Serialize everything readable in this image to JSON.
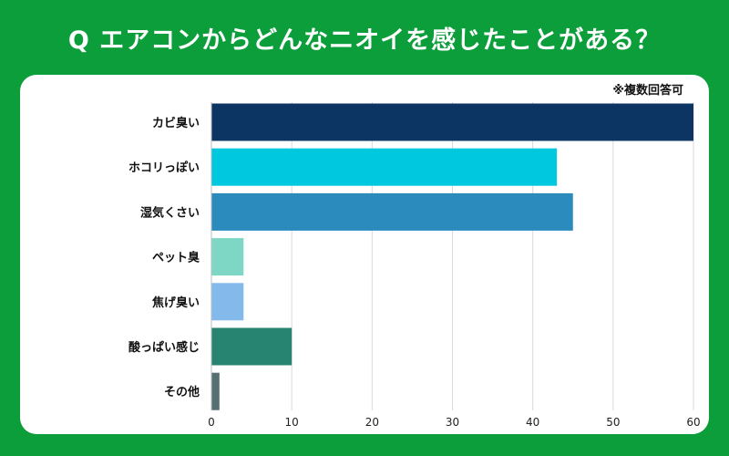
{
  "title": "Q エアコンからどんなニオイを感じたことがある？",
  "note": "※複数回答可",
  "chart_data": {
    "type": "bar",
    "orientation": "horizontal",
    "categories": [
      "カビ臭い",
      "ホコリっぽい",
      "湿気くさい",
      "ペット臭",
      "焦げ臭い",
      "酸っぱい感じ",
      "その他"
    ],
    "values": [
      60,
      43,
      45,
      4,
      4,
      10,
      1
    ],
    "colors": [
      "#0d3564",
      "#00c8de",
      "#2b8bbd",
      "#7ed6c4",
      "#84b9ec",
      "#268471",
      "#566f72"
    ],
    "xlim": [
      0,
      60
    ],
    "xticks": [
      0,
      10,
      20,
      30,
      40,
      50,
      60
    ],
    "grid": true,
    "legend": "none"
  }
}
